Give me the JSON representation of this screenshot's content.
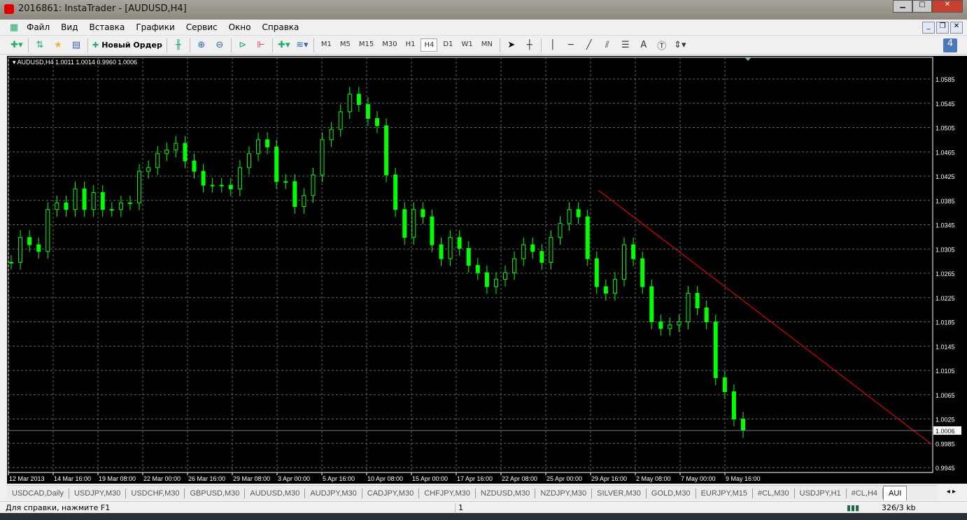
{
  "window": {
    "title": "2016861: InstaTrader - [AUDUSD,H4]"
  },
  "menu": [
    "Файл",
    "Вид",
    "Вставка",
    "Графики",
    "Сервис",
    "Окно",
    "Справка"
  ],
  "toolbar": {
    "new_order": "Новый Ордер",
    "timeframes": [
      "M1",
      "M5",
      "M15",
      "M30",
      "H1",
      "H4",
      "D1",
      "W1",
      "MN"
    ],
    "active_timeframe": "H4",
    "text_tool": "A",
    "notifications": "4"
  },
  "chart_data": {
    "type": "candlestick",
    "symbol_header": "AUDUSD,H4  1.0011 1.0014 0.9960 1.0006",
    "current_price": "1.0006",
    "price_ticks": [
      "1.0585",
      "1.0545",
      "1.0505",
      "1.0465",
      "1.0425",
      "1.0385",
      "1.0345",
      "1.0305",
      "1.0265",
      "1.0225",
      "1.0185",
      "1.0145",
      "1.0105",
      "1.0065",
      "1.0025",
      "0.9985",
      "0.9945"
    ],
    "ylim": [
      0.9945,
      1.0585
    ],
    "date_ticks": [
      "12 Mar 2013",
      "14 Mar 16:00",
      "19 Mar 08:00",
      "22 Mar 00:00",
      "26 Mar 16:00",
      "29 Mar 08:00",
      "3 Apr 00:00",
      "5 Apr 16:00",
      "10 Apr 08:00",
      "15 Apr 00:00",
      "17 Apr 16:00",
      "22 Apr 08:00",
      "25 Apr 00:00",
      "29 Apr 16:00",
      "2 May 08:00",
      "7 May 00:00",
      "9 May 16:00"
    ],
    "closes": [
      1.0283,
      1.0324,
      1.0312,
      1.0301,
      1.037,
      1.0381,
      1.037,
      1.0404,
      1.037,
      1.0398,
      1.037,
      1.037,
      1.0381,
      1.0381,
      1.0433,
      1.0439,
      1.0462,
      1.0468,
      1.0479,
      1.045,
      1.0433,
      1.041,
      1.041,
      1.041,
      1.0404,
      1.0439,
      1.0462,
      1.0485,
      1.0473,
      1.0416,
      1.0416,
      1.0375,
      1.0393,
      1.0427,
      1.0485,
      1.0502,
      1.0531,
      1.056,
      1.0543,
      1.052,
      1.0508,
      1.0427,
      1.037,
      1.0324,
      1.037,
      1.0358,
      1.0312,
      1.0289,
      1.0324,
      1.0306,
      1.0278,
      1.0266,
      1.0243,
      1.0255,
      1.0266,
      1.0289,
      1.0312,
      1.0301,
      1.0283,
      1.0324,
      1.0347,
      1.037,
      1.0358,
      1.0289,
      1.0243,
      1.0232,
      1.0255,
      1.0312,
      1.0289,
      1.0243,
      1.0185,
      1.0174,
      1.018,
      1.0185,
      1.0232,
      1.0208,
      1.0185,
      1.0093,
      1.007,
      1.0025,
      1.0006
    ],
    "trendline": {
      "color": "#ff0000",
      "from_price": 1.0402,
      "to_price": 0.9982
    },
    "candle_color": "#00ff00",
    "background": "#000000",
    "grid": true
  },
  "tabs": [
    "USDCAD,Daily",
    "USDJPY,M30",
    "USDCHF,M30",
    "GBPUSD,M30",
    "AUDUSD,M30",
    "AUDJPY,M30",
    "CADJPY,M30",
    "CHFJPY,M30",
    "NZDUSD,M30",
    "NZDJPY,M30",
    "SILVER,M30",
    "GOLD,M30",
    "EURJPY,M15",
    "#CL,M30",
    "USDJPY,H1",
    "#CL,H4",
    "AUI"
  ],
  "status": {
    "help": "Для справки, нажмите F1",
    "profile": "1",
    "traffic": "326/3 kb"
  }
}
